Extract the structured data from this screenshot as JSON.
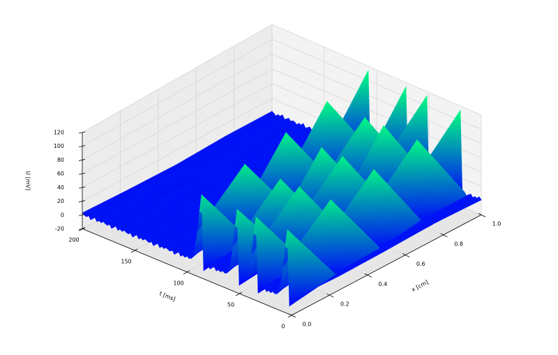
{
  "chart_data": {
    "type": "surface3d",
    "xlabel": "x [cm]",
    "tlabel": "t [ms]",
    "zlabel": "U [mV]",
    "colormap": "winter",
    "grid": true,
    "xlim": [
      0,
      1
    ],
    "tlim": [
      0,
      200
    ],
    "zlim": [
      -20,
      120
    ],
    "xticks": [
      {
        "value": 0,
        "label": "0.0"
      },
      0.2,
      0.4,
      0.6,
      0.8,
      {
        "value": 1,
        "label": "1.0"
      }
    ],
    "tticks": [
      0,
      50,
      100,
      150,
      200
    ],
    "zticks": [
      -20,
      0,
      20,
      40,
      60,
      80,
      100,
      120
    ],
    "x": [
      0,
      0.25,
      0.5,
      0.75,
      1
    ],
    "t": [
      0,
      2,
      4,
      6,
      8,
      10,
      12,
      14,
      16,
      18,
      20,
      22,
      24,
      26,
      28,
      30,
      32,
      34,
      36,
      38,
      40,
      42,
      44,
      46,
      48,
      50,
      52,
      54,
      56,
      58,
      60,
      62,
      64,
      66,
      68,
      70,
      72,
      74,
      76,
      78,
      80,
      82,
      84,
      86,
      88,
      90,
      92,
      94,
      96,
      98,
      100,
      102,
      104,
      106,
      108,
      110,
      112,
      114,
      116,
      118,
      120,
      122,
      124,
      126,
      128,
      130,
      132,
      134,
      136,
      138,
      140,
      142,
      144,
      146,
      148,
      150,
      152,
      154,
      156,
      158,
      160,
      162,
      164,
      166,
      168,
      170,
      172,
      174,
      176,
      178,
      180,
      182,
      184,
      186,
      188,
      190,
      192,
      194,
      196,
      198,
      200
    ],
    "z": [
      [
        2,
        -8,
        100,
        75,
        45,
        22,
        8,
        2,
        1,
        3,
        0,
        2,
        -1,
        4,
        1,
        -2,
        -8,
        100,
        75,
        45,
        22,
        8,
        2,
        3,
        0,
        -8,
        100,
        75,
        45,
        22,
        8,
        2,
        1,
        3,
        0,
        2,
        -1,
        4,
        1,
        -2,
        3,
        0,
        -8,
        100,
        75,
        45,
        22,
        8,
        2,
        1,
        3,
        0,
        2,
        -1,
        4,
        1,
        -2,
        3,
        0,
        1,
        3,
        0,
        2,
        -1,
        4,
        1,
        -2,
        3,
        0,
        1,
        3,
        0,
        2,
        -1,
        4,
        1,
        -2,
        3,
        0,
        1,
        3,
        0,
        2,
        -1,
        4,
        1,
        -2,
        3,
        0,
        1,
        3,
        0,
        2,
        -1,
        4,
        1,
        -2,
        3,
        0,
        1,
        3
      ],
      [
        0,
        2,
        1,
        -8,
        104,
        78,
        47,
        23,
        8,
        2,
        2,
        -1,
        3,
        0,
        1,
        4,
        -2,
        1,
        -8,
        104,
        78,
        47,
        23,
        8,
        2,
        0,
        3,
        -8,
        104,
        78,
        47,
        23,
        8,
        2,
        2,
        1,
        -1,
        3,
        0,
        4,
        1,
        -2,
        2,
        0,
        -8,
        104,
        78,
        47,
        23,
        8,
        2,
        0,
        2,
        3,
        -1,
        1,
        4,
        0,
        -2,
        2,
        1,
        0,
        2,
        3,
        -1,
        1,
        4,
        0,
        -2,
        2,
        1,
        0,
        2,
        3,
        -1,
        1,
        4,
        0,
        -2,
        2,
        1,
        0,
        2,
        3,
        -1,
        1,
        4,
        0,
        -2,
        2,
        1,
        0,
        2,
        3,
        -1,
        1,
        4,
        0,
        -2,
        2,
        1
      ],
      [
        1,
        0,
        3,
        -1,
        2,
        -8,
        108,
        81,
        49,
        24,
        9,
        2,
        3,
        1,
        -2,
        0,
        4,
        1,
        2,
        -1,
        -8,
        108,
        81,
        49,
        24,
        9,
        2,
        2,
        0,
        1,
        -8,
        108,
        81,
        49,
        24,
        9,
        2,
        1,
        3,
        0,
        2,
        -1,
        4,
        1,
        -2,
        3,
        0,
        -8,
        108,
        81,
        49,
        24,
        9,
        2,
        2,
        0,
        3,
        1,
        -1,
        2,
        4,
        0,
        -2,
        1,
        2,
        0,
        3,
        1,
        -1,
        2,
        4,
        0,
        -2,
        1,
        2,
        0,
        3,
        1,
        -1,
        2,
        4,
        0,
        -2,
        1,
        2,
        0,
        3,
        1,
        -1,
        2,
        4,
        0,
        -2,
        1,
        3,
        0,
        2,
        1,
        -1,
        2,
        0
      ],
      [
        3,
        0,
        1,
        2,
        -1,
        4,
        0,
        -8,
        111,
        83,
        50,
        24,
        9,
        2,
        1,
        -2,
        3,
        0,
        2,
        1,
        4,
        -1,
        0,
        -8,
        111,
        83,
        50,
        24,
        9,
        2,
        2,
        1,
        -8,
        111,
        83,
        50,
        24,
        9,
        2,
        0,
        3,
        1,
        -1,
        2,
        4,
        0,
        -2,
        1,
        3,
        0,
        -8,
        111,
        83,
        50,
        24,
        9,
        2,
        1,
        3,
        0,
        2,
        -1,
        4,
        1,
        -2,
        3,
        0,
        1,
        3,
        0,
        2,
        -1,
        4,
        1,
        -2,
        3,
        0,
        1,
        3,
        0,
        2,
        -1,
        4,
        1,
        -2,
        3,
        0,
        1,
        3,
        0,
        2,
        -1,
        4,
        1,
        -2,
        3,
        0,
        2,
        1,
        0,
        3
      ],
      [
        1,
        4,
        0,
        2,
        -1,
        3,
        1,
        -2,
        2,
        -8,
        114,
        86,
        51,
        25,
        9,
        2,
        0,
        3,
        1,
        -1,
        2,
        4,
        0,
        1,
        -2,
        -8,
        114,
        86,
        51,
        25,
        9,
        2,
        2,
        0,
        3,
        -8,
        114,
        86,
        51,
        25,
        9,
        2,
        1,
        -1,
        3,
        0,
        2,
        4,
        1,
        -2,
        0,
        3,
        1,
        -8,
        114,
        86,
        51,
        25,
        9,
        2,
        2,
        0,
        3,
        1,
        -1,
        4,
        0,
        2,
        -2,
        1,
        2,
        0,
        3,
        1,
        -1,
        4,
        0,
        2,
        -2,
        1,
        2,
        0,
        3,
        1,
        -1,
        4,
        0,
        2,
        -2,
        1,
        2,
        0,
        3,
        1,
        -1,
        4,
        0,
        2,
        -2,
        1,
        3
      ]
    ]
  }
}
